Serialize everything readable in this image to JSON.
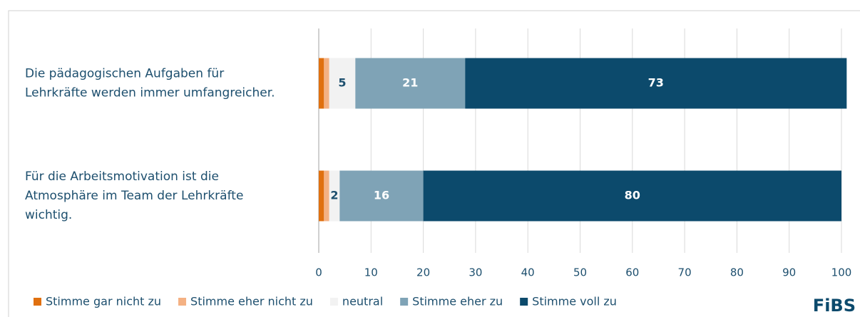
{
  "chart_data": {
    "type": "stacked_barh",
    "categories": [
      [
        "Die pädagogischen Aufgaben für",
        "Lehrkräfte werden immer umfangreicher."
      ],
      [
        "Für die Arbeitsmotivation ist die",
        "Atmosphäre im Team der Lehrkräfte",
        "wichtig."
      ]
    ],
    "series": [
      {
        "name": "Stimme gar nicht zu",
        "color": "#e0700f",
        "values": [
          1,
          1
        ]
      },
      {
        "name": "Stimme eher nicht zu",
        "color": "#f4b183",
        "values": [
          1,
          1
        ]
      },
      {
        "name": "neutral",
        "color": "#f2f2f2",
        "values": [
          5,
          2
        ]
      },
      {
        "name": "Stimme eher zu",
        "color": "#7fa3b6",
        "values": [
          21,
          16
        ]
      },
      {
        "name": "Stimme voll zu",
        "color": "#0c4a6c",
        "values": [
          73,
          80
        ]
      }
    ],
    "xlim": [
      0,
      100
    ],
    "xticks": [
      0,
      10,
      20,
      30,
      40,
      50,
      60,
      70,
      80,
      90,
      100
    ],
    "grid": true,
    "legend": "bottom",
    "logo": "FiBS"
  }
}
